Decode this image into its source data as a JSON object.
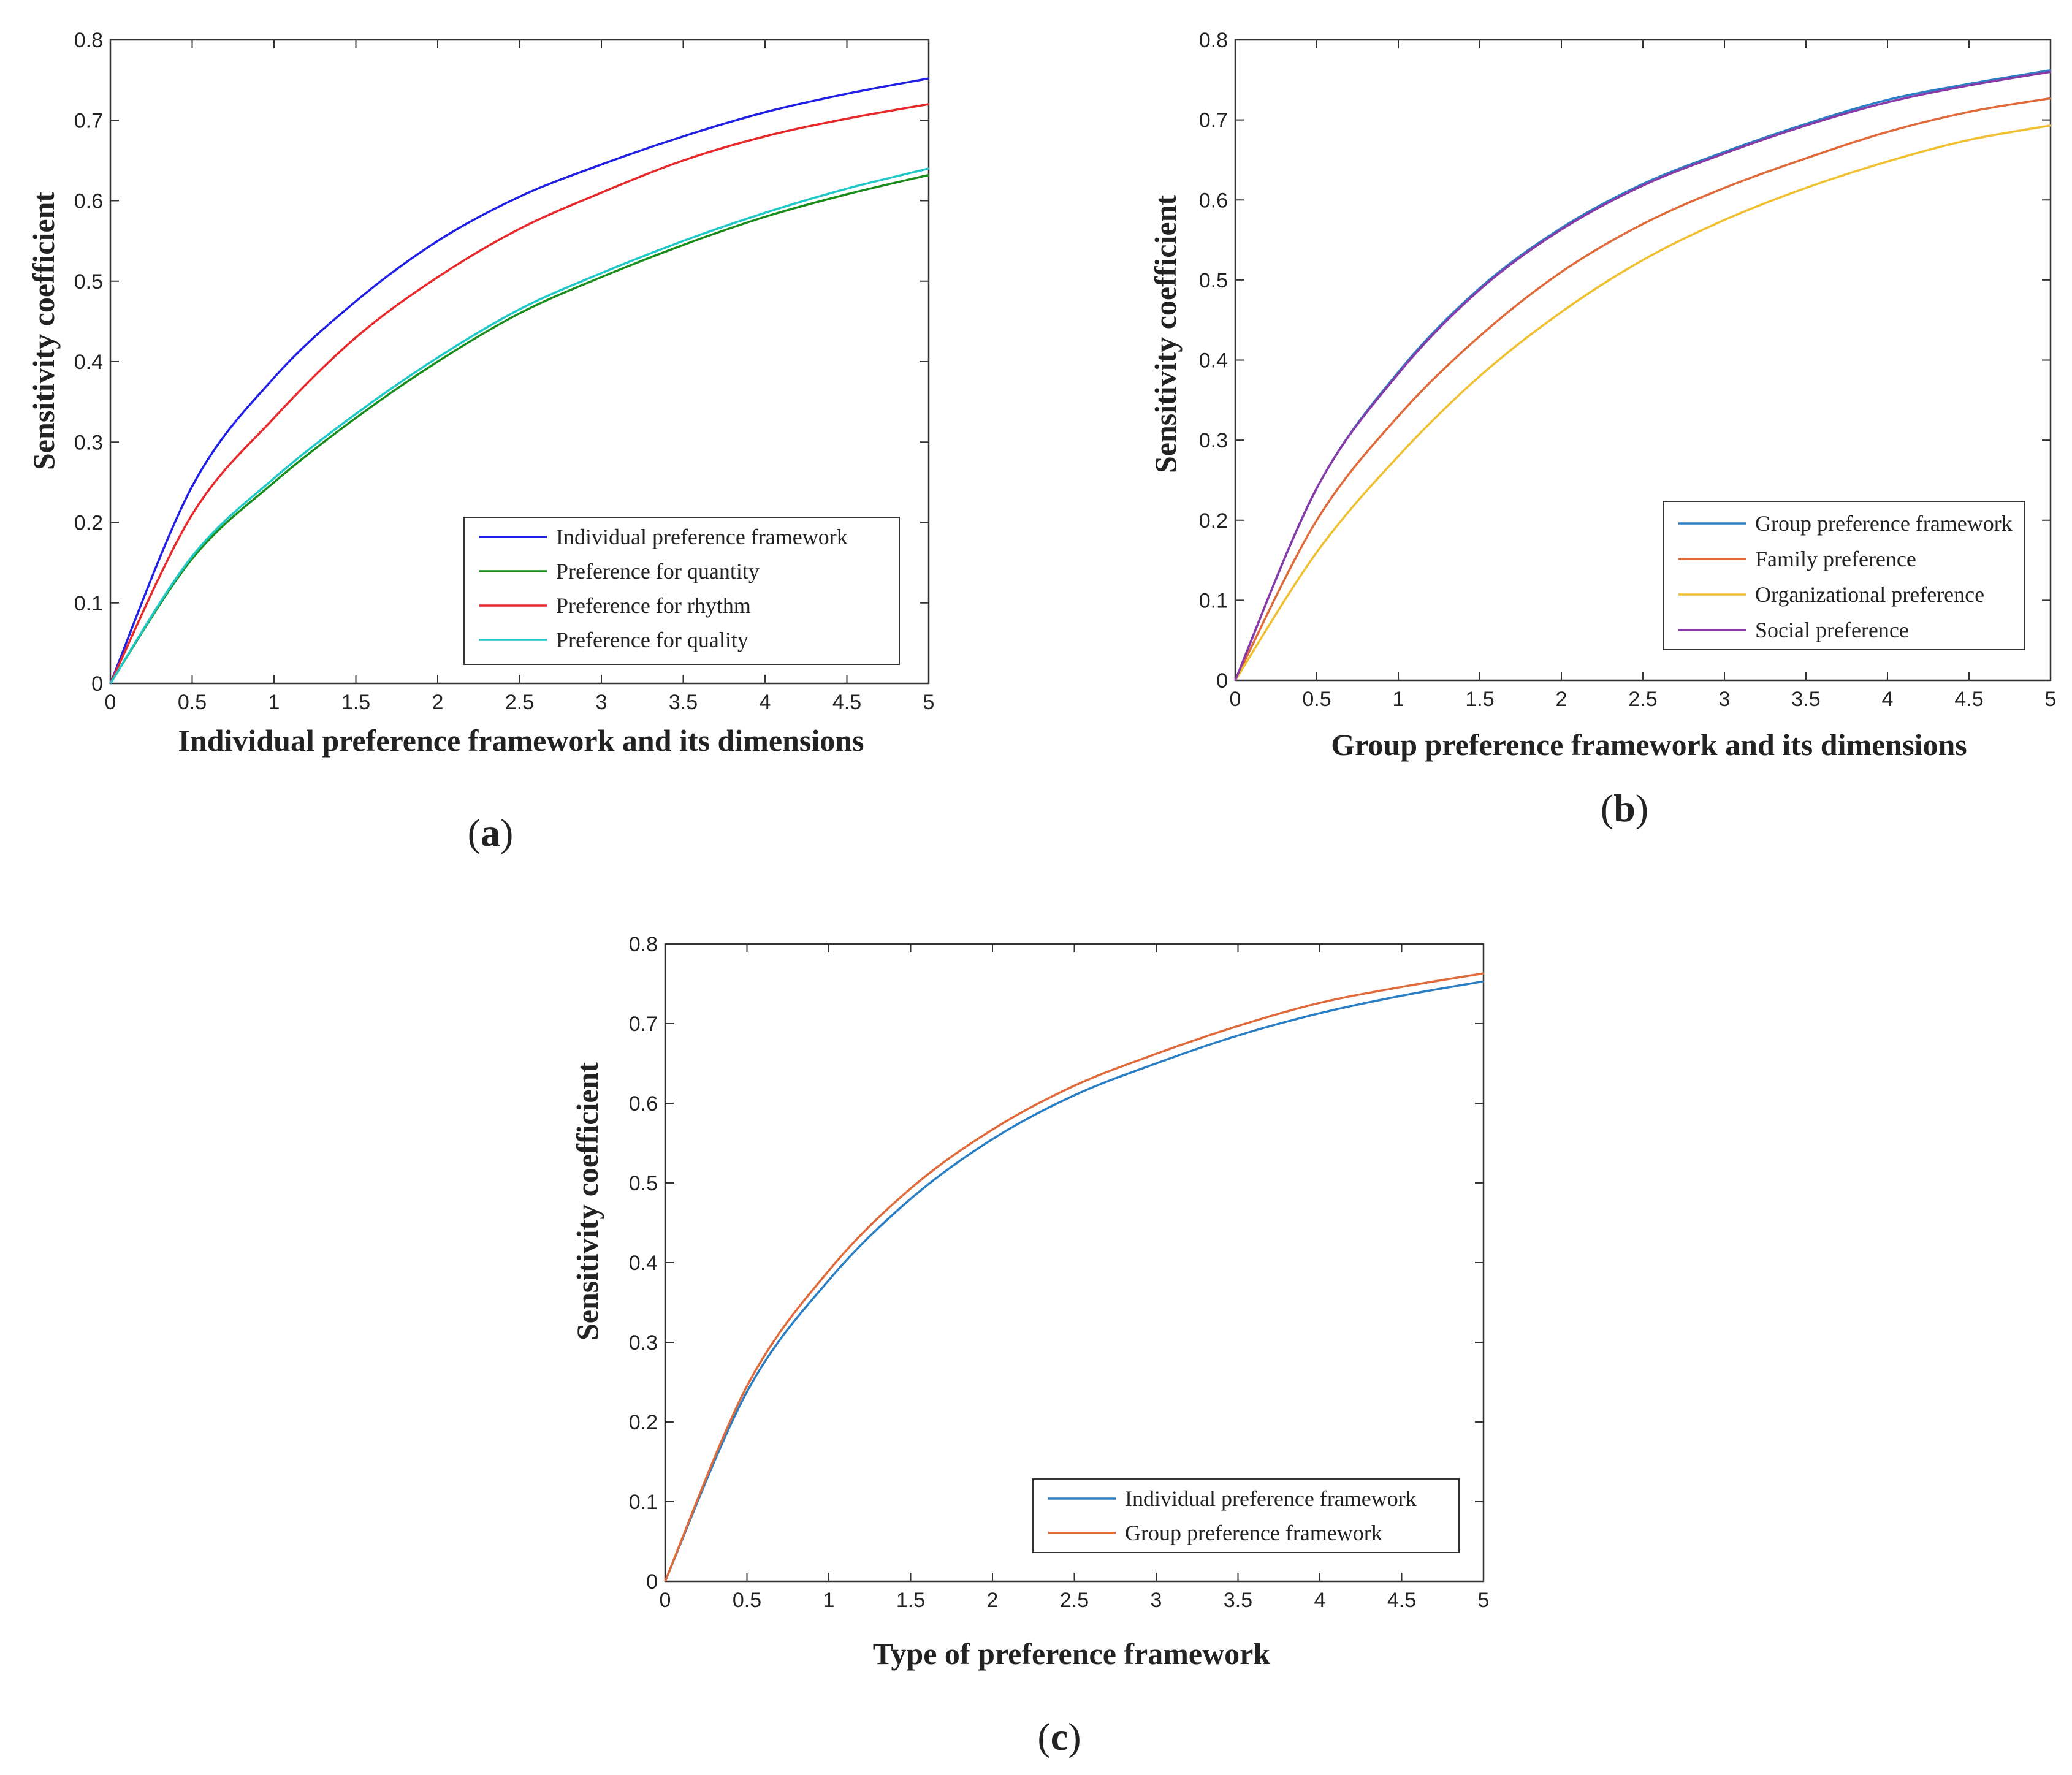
{
  "chart_data": [
    {
      "panel": "a",
      "type": "line",
      "xlabel": "Individual preference framework and its dimensions",
      "ylabel": "Sensitivity coefficient",
      "xlim": [
        0,
        5
      ],
      "ylim": [
        0,
        0.8
      ],
      "xticks": [
        "0",
        "0.5",
        "1",
        "1.5",
        "2",
        "2.5",
        "3",
        "3.5",
        "4",
        "4.5",
        "5"
      ],
      "yticks": [
        "0",
        "0.1",
        "0.2",
        "0.3",
        "0.4",
        "0.5",
        "0.6",
        "0.7",
        "0.8"
      ],
      "legend_position": "bottom-right",
      "x": [
        0,
        0.5,
        1,
        1.5,
        2,
        2.5,
        3,
        3.5,
        4,
        4.5,
        5
      ],
      "series": [
        {
          "name": "Individual preference framework",
          "color": "#1f1fe6",
          "values": [
            0,
            0.245,
            0.38,
            0.475,
            0.55,
            0.605,
            0.645,
            0.68,
            0.71,
            0.733,
            0.752
          ]
        },
        {
          "name": "Preference for quantity",
          "color": "#1a8c1a",
          "values": [
            0,
            0.155,
            0.25,
            0.33,
            0.4,
            0.46,
            0.505,
            0.545,
            0.58,
            0.608,
            0.632
          ]
        },
        {
          "name": "Preference for rhythm",
          "color": "#e8282a",
          "values": [
            0,
            0.21,
            0.33,
            0.43,
            0.505,
            0.565,
            0.61,
            0.65,
            0.68,
            0.702,
            0.72
          ]
        },
        {
          "name": "Preference for quality",
          "color": "#20c8c8",
          "values": [
            0,
            0.158,
            0.255,
            0.335,
            0.405,
            0.465,
            0.51,
            0.55,
            0.585,
            0.615,
            0.64
          ]
        }
      ],
      "panel_label": "a"
    },
    {
      "panel": "b",
      "type": "line",
      "xlabel": "Group preference framework and its dimensions",
      "ylabel": "Sensitivity coefficient",
      "xlim": [
        0,
        5
      ],
      "ylim": [
        0,
        0.8
      ],
      "xticks": [
        "0",
        "0.5",
        "1",
        "1.5",
        "2",
        "2.5",
        "3",
        "3.5",
        "4",
        "4.5",
        "5"
      ],
      "yticks": [
        "0",
        "0.1",
        "0.2",
        "0.3",
        "0.4",
        "0.5",
        "0.6",
        "0.7",
        "0.8"
      ],
      "legend_position": "bottom-right",
      "x": [
        0,
        0.5,
        1,
        1.5,
        2,
        2.5,
        3,
        3.5,
        4,
        4.5,
        5
      ],
      "series": [
        {
          "name": "Group preference framework",
          "color": "#2a7ec4",
          "values": [
            0,
            0.24,
            0.385,
            0.49,
            0.565,
            0.62,
            0.66,
            0.695,
            0.725,
            0.745,
            0.762
          ]
        },
        {
          "name": "Family preference",
          "color": "#e06a3a",
          "values": [
            0,
            0.2,
            0.33,
            0.43,
            0.51,
            0.57,
            0.615,
            0.652,
            0.685,
            0.71,
            0.727
          ]
        },
        {
          "name": "Organizational preference",
          "color": "#f0c030",
          "values": [
            0,
            0.16,
            0.28,
            0.38,
            0.46,
            0.525,
            0.575,
            0.615,
            0.648,
            0.675,
            0.693
          ]
        },
        {
          "name": "Social preference",
          "color": "#8a3aa8",
          "values": [
            0,
            0.24,
            0.383,
            0.488,
            0.563,
            0.618,
            0.658,
            0.693,
            0.722,
            0.743,
            0.76
          ]
        }
      ],
      "panel_label": "b"
    },
    {
      "panel": "c",
      "type": "line",
      "xlabel": "Type of preference framework",
      "ylabel": "Sensitivity coefficient",
      "xlim": [
        0,
        5
      ],
      "ylim": [
        0,
        0.8
      ],
      "xticks": [
        "0",
        "0.5",
        "1",
        "1.5",
        "2",
        "2.5",
        "3",
        "3.5",
        "4",
        "4.5",
        "5"
      ],
      "yticks": [
        "0",
        "0.1",
        "0.2",
        "0.3",
        "0.4",
        "0.5",
        "0.6",
        "0.7",
        "0.8"
      ],
      "legend_position": "bottom-right",
      "x": [
        0,
        0.5,
        1,
        1.5,
        2,
        2.5,
        3,
        3.5,
        4,
        4.5,
        5
      ],
      "series": [
        {
          "name": "Individual preference framework",
          "color": "#2a7ec4",
          "values": [
            0,
            0.238,
            0.378,
            0.48,
            0.555,
            0.61,
            0.65,
            0.685,
            0.713,
            0.735,
            0.753
          ]
        },
        {
          "name": "Group preference framework",
          "color": "#e06a3a",
          "values": [
            0,
            0.245,
            0.39,
            0.493,
            0.567,
            0.622,
            0.662,
            0.697,
            0.726,
            0.746,
            0.763
          ]
        }
      ],
      "panel_label": "c"
    }
  ]
}
